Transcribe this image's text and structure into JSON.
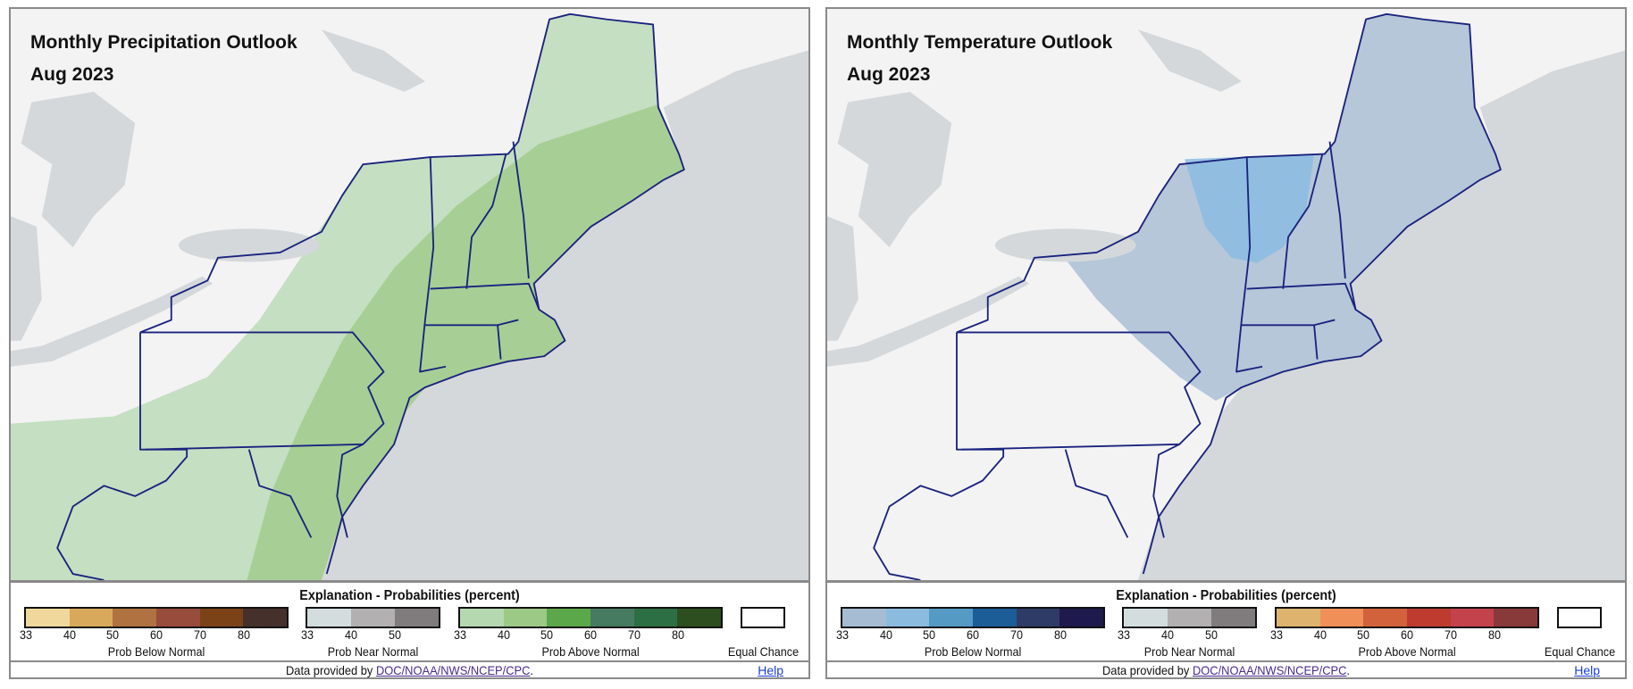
{
  "panels": [
    {
      "title": "Monthly Precipitation Outlook",
      "date": "Aug 2023",
      "variable": "precipitation",
      "legend": {
        "title": "Explanation - Probabilities (percent)",
        "below": {
          "label": "Prob Below Normal",
          "ticks": [
            "33",
            "40",
            "50",
            "60",
            "70",
            "80"
          ],
          "colors": [
            "#f0d89c",
            "#d8a95b",
            "#b07240",
            "#984c3c",
            "#7a4216",
            "#45302c"
          ]
        },
        "near": {
          "label": "Prob Near Normal",
          "ticks": [
            "33",
            "40",
            "50"
          ],
          "colors": [
            "#d3dddd",
            "#b2b0b1",
            "#807b7c"
          ]
        },
        "above": {
          "label": "Prob Above Normal",
          "ticks": [
            "33",
            "40",
            "50",
            "60",
            "70",
            "80"
          ],
          "colors": [
            "#b6d8b1",
            "#9cc985",
            "#5ba84a",
            "#467b61",
            "#2d6f44",
            "#2d4e1f"
          ]
        },
        "equal": {
          "label": "Equal Chance",
          "color": "#ffffff"
        }
      },
      "footer": {
        "prefix": "Data provided by ",
        "link": "DOC/NOAA/NWS/NCEP/CPC",
        "suffix": ".",
        "help": "Help"
      }
    },
    {
      "title": "Monthly Temperature Outlook",
      "date": "Aug 2023",
      "variable": "temperature",
      "legend": {
        "title": "Explanation - Probabilities (percent)",
        "below": {
          "label": "Prob Below Normal",
          "ticks": [
            "33",
            "40",
            "50",
            "60",
            "70",
            "80"
          ],
          "colors": [
            "#a5bcd2",
            "#8bbce0",
            "#5599c5",
            "#1c5d97",
            "#2e3b66",
            "#1e1a4e"
          ]
        },
        "near": {
          "label": "Prob Near Normal",
          "ticks": [
            "33",
            "40",
            "50"
          ],
          "colors": [
            "#d3dddd",
            "#b2b0b1",
            "#807b7c"
          ]
        },
        "above": {
          "label": "Prob Above Normal",
          "ticks": [
            "33",
            "40",
            "50",
            "60",
            "70",
            "80"
          ],
          "colors": [
            "#ddb36e",
            "#f09058",
            "#d2623c",
            "#bf3b30",
            "#c3424c",
            "#883a3a"
          ]
        },
        "equal": {
          "label": "Equal Chance",
          "color": "#ffffff"
        }
      },
      "footer": {
        "prefix": "Data provided by ",
        "link": "DOC/NOAA/NWS/NCEP/CPC",
        "suffix": ".",
        "help": "Help"
      }
    }
  ]
}
